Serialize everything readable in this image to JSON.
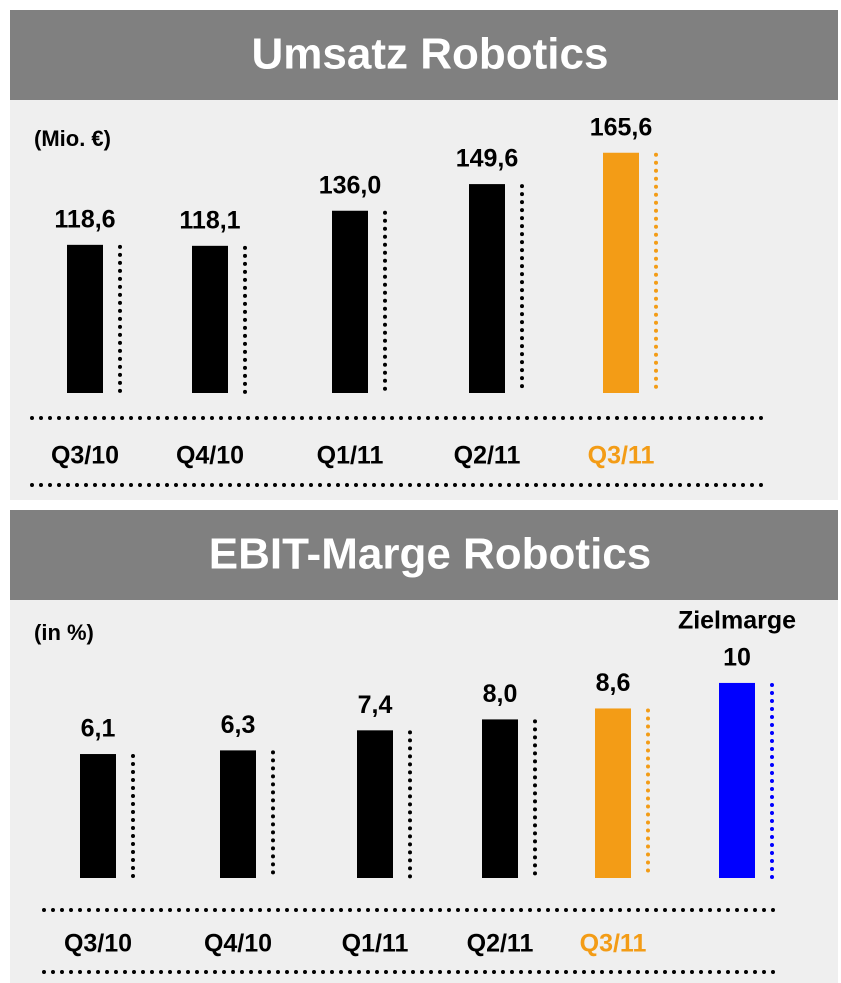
{
  "chart_data": [
    {
      "type": "bar",
      "title": "Umsatz Robotics",
      "unit_label": "(Mio. €)",
      "categories": [
        "Q3/10",
        "Q4/10",
        "Q1/11",
        "Q2/11",
        "Q3/11"
      ],
      "values": [
        118.6,
        118.1,
        136.0,
        149.6,
        165.6
      ],
      "value_labels": [
        "118,6",
        "118,1",
        "136,0",
        "149,6",
        "165,6"
      ],
      "colors": [
        "#000000",
        "#000000",
        "#000000",
        "#000000",
        "#f39c16"
      ],
      "ylim": [
        43,
        167
      ]
    },
    {
      "type": "bar",
      "title": "EBIT-Marge Robotics",
      "unit_label": "(in %)",
      "categories": [
        "Q3/10",
        "Q4/10",
        "Q1/11",
        "Q2/11",
        "Q3/11",
        null
      ],
      "values": [
        6.1,
        6.3,
        7.4,
        8.0,
        8.6,
        10
      ],
      "value_labels": [
        "6,1",
        "6,3",
        "7,4",
        "8,0",
        "8,6",
        "10"
      ],
      "colors": [
        "#000000",
        "#000000",
        "#000000",
        "#000000",
        "#f39c16",
        "#0000ff"
      ],
      "annotation": "Zielmarge",
      "ylim": [
        -0.7,
        10.6
      ]
    }
  ]
}
